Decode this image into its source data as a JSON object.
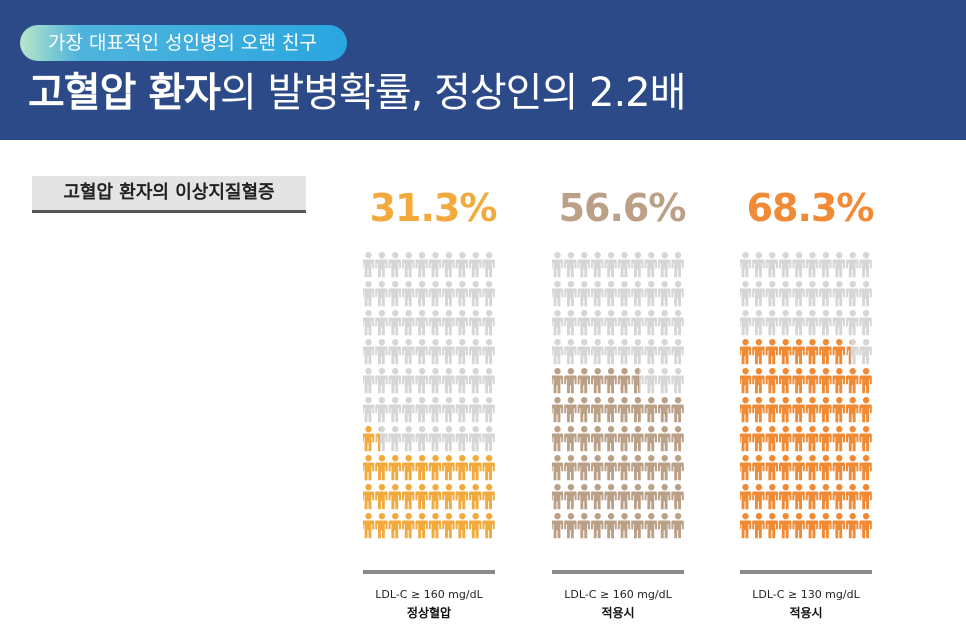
{
  "header": {
    "tag": "가장 대표적인 성인병의 오랜 친구",
    "title_bold": "고혈압 환자",
    "title_rest": "의 발병확률, 정상인의 2.2배"
  },
  "subtitle": "고혈압 환자의 이상지질혈증",
  "colors": {
    "header_bg": "#2b4a87",
    "empty_figure": "#d6d6d6"
  },
  "chart_data": {
    "type": "bar",
    "title": "",
    "categories": [
      "LDL-C ≥ 160 mg/dL 정상혈압",
      "LDL-C ≥ 160 mg/dL 적용시",
      "LDL-C ≥ 130 mg/dL 적용시"
    ],
    "series": [
      {
        "values": [
          31.3,
          56.6,
          68.3
        ]
      }
    ],
    "ylim": [
      0,
      100
    ],
    "groups": [
      {
        "value": 31.3,
        "label": "31.3%",
        "color": "#f2aa3c",
        "condition": "LDL-C ≥ 160 mg/dL",
        "note": "정상혈압"
      },
      {
        "value": 56.6,
        "label": "56.6%",
        "color": "#bba088",
        "condition": "LDL-C ≥ 160 mg/dL",
        "note": "적용시"
      },
      {
        "value": 68.3,
        "label": "68.3%",
        "color": "#f08a34",
        "condition": "LDL-C ≥ 130 mg/dL",
        "note": "적용시"
      }
    ]
  }
}
